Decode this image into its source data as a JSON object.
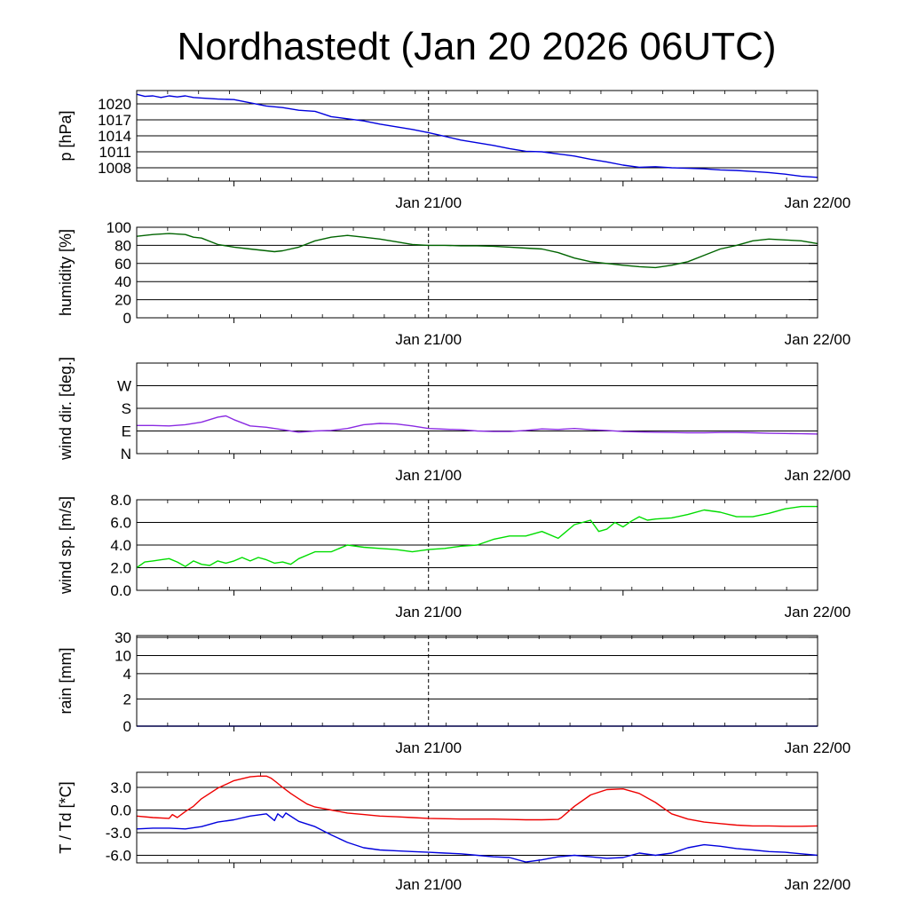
{
  "chart_data": {
    "type": "line",
    "title": "Nordhastedt (Jan 20 2026 06UTC)",
    "x_range_hours": [
      0,
      42
    ],
    "x_ticks": [
      {
        "h": 18,
        "label": "Jan 21/00"
      },
      {
        "h": 42,
        "label": "Jan 22/00"
      }
    ],
    "x_minor_ticks": [
      6,
      30
    ],
    "now_marker_h": 18,
    "panels": [
      {
        "id": "pressure",
        "ylabel": "p [hPa]",
        "ylim": [
          1005.5,
          1022.5
        ],
        "yticks": [
          1020,
          1017,
          1014,
          1011,
          1008
        ],
        "ytick_labels": [
          "1020",
          "1017",
          "1014",
          "1011",
          "1008"
        ],
        "series": [
          {
            "name": "pressure",
            "color": "#0000dd",
            "x": [
              0,
              0.5,
              1,
              1.5,
              2,
              2.5,
              3,
              3.5,
              4,
              5,
              6,
              7,
              8,
              9,
              10,
              11,
              12,
              13,
              14,
              15,
              16,
              17,
              18,
              19,
              20,
              21,
              22,
              23,
              24,
              25,
              26,
              27,
              28,
              29,
              30,
              31,
              32,
              33,
              34,
              35,
              36,
              37,
              38,
              39,
              40,
              41,
              42
            ],
            "y": [
              1021.8,
              1021.4,
              1021.5,
              1021.2,
              1021.5,
              1021.3,
              1021.5,
              1021.2,
              1021.1,
              1020.9,
              1020.8,
              1020.2,
              1019.6,
              1019.3,
              1018.8,
              1018.6,
              1017.6,
              1017.2,
              1016.8,
              1016.2,
              1015.7,
              1015.2,
              1014.6,
              1013.9,
              1013.2,
              1012.7,
              1012.2,
              1011.6,
              1011.1,
              1011.0,
              1010.6,
              1010.2,
              1009.6,
              1009.1,
              1008.5,
              1008.1,
              1008.2,
              1008.0,
              1007.9,
              1007.8,
              1007.6,
              1007.5,
              1007.3,
              1007.1,
              1006.8,
              1006.4,
              1006.2
            ]
          }
        ]
      },
      {
        "id": "humidity",
        "ylabel": "humidity [%]",
        "ylim": [
          0,
          100
        ],
        "yticks": [
          100,
          80,
          60,
          40,
          20,
          0
        ],
        "ytick_labels": [
          "100",
          "80",
          "60",
          "40",
          "20",
          "0"
        ],
        "series": [
          {
            "name": "humidity",
            "color": "#006400",
            "x": [
              0,
              1,
              2,
              3,
              3.5,
              4,
              5,
              6,
              7,
              8,
              8.5,
              9,
              10,
              11,
              12,
              13,
              14,
              15,
              16,
              17,
              18,
              19,
              20,
              21,
              22,
              23,
              24,
              25,
              26,
              27,
              28,
              29,
              30,
              31,
              32,
              33,
              34,
              35,
              36,
              37,
              38,
              39,
              40,
              41,
              42
            ],
            "y": [
              90,
              92,
              93,
              92,
              89,
              88,
              81,
              78,
              76,
              74,
              73,
              74,
              78,
              85,
              89,
              91,
              89,
              87,
              84,
              81,
              80,
              80,
              79.5,
              79.5,
              79,
              78,
              77,
              76,
              72,
              66,
              62,
              60,
              58,
              56.5,
              55.5,
              58,
              62,
              69,
              76,
              80,
              85,
              87,
              86,
              85,
              82
            ]
          }
        ]
      },
      {
        "id": "wind_direction",
        "ylabel": "wind dir. [deg.]",
        "ylim": [
          0,
          360
        ],
        "yticks": [
          270,
          180,
          90,
          0
        ],
        "ytick_labels": [
          "W",
          "S",
          "E",
          "N"
        ],
        "series": [
          {
            "name": "wind direction",
            "color": "#8a2be2",
            "x": [
              0,
              1,
              2,
              3,
              4,
              5,
              5.5,
              6,
              7,
              8,
              9,
              10,
              11,
              12,
              13,
              14,
              15,
              16,
              17,
              18,
              19,
              20,
              21,
              22,
              23,
              24,
              25,
              26,
              27,
              28,
              29,
              30,
              31,
              32,
              33,
              34,
              35,
              36,
              37,
              38,
              39,
              40,
              41,
              42
            ],
            "y": [
              112,
              112,
              110,
              115,
              125,
              145,
              150,
              135,
              110,
              105,
              95,
              85,
              90,
              92,
              100,
              115,
              120,
              118,
              110,
              100,
              97,
              95,
              90,
              88,
              88,
              92,
              98,
              96,
              100,
              95,
              92,
              88,
              86,
              85,
              84,
              83,
              83,
              84,
              84,
              83,
              81,
              80,
              79,
              78
            ]
          }
        ]
      },
      {
        "id": "wind_speed",
        "ylabel": "wind sp. [m/s]",
        "ylim": [
          0,
          8
        ],
        "yticks": [
          8,
          6,
          4,
          2,
          0
        ],
        "ytick_labels": [
          "8.0",
          "6.0",
          "4.0",
          "2.0",
          "0.0"
        ],
        "series": [
          {
            "name": "wind speed",
            "color": "#00dd00",
            "x": [
              0,
              0.5,
              1,
              1.5,
              2,
              2.5,
              3,
              3.5,
              4,
              4.5,
              5,
              5.5,
              6,
              6.5,
              7,
              7.5,
              8,
              8.5,
              9,
              9.5,
              10,
              11,
              12,
              13,
              14,
              15,
              16,
              17,
              18,
              19,
              20,
              21,
              22,
              23,
              24,
              25,
              26,
              27,
              28,
              28.5,
              29,
              29.5,
              30,
              30.5,
              31,
              31.5,
              32,
              33,
              34,
              35,
              36,
              37,
              38,
              39,
              40,
              41,
              42
            ],
            "y": [
              2.0,
              2.5,
              2.6,
              2.7,
              2.8,
              2.5,
              2.1,
              2.6,
              2.3,
              2.2,
              2.6,
              2.4,
              2.6,
              2.9,
              2.6,
              2.9,
              2.7,
              2.4,
              2.5,
              2.3,
              2.8,
              3.4,
              3.4,
              4.0,
              3.8,
              3.7,
              3.6,
              3.4,
              3.6,
              3.7,
              3.9,
              4.0,
              4.5,
              4.8,
              4.8,
              5.2,
              4.6,
              5.8,
              6.2,
              5.2,
              5.4,
              6.0,
              5.6,
              6.1,
              6.5,
              6.2,
              6.3,
              6.4,
              6.7,
              7.1,
              6.9,
              6.5,
              6.5,
              6.8,
              7.2,
              7.4,
              7.4
            ]
          }
        ]
      },
      {
        "id": "rain",
        "ylabel": "rain [mm]",
        "ylim": [
          0,
          30
        ],
        "yticks": [
          30,
          10,
          4,
          2,
          0
        ],
        "ytick_labels": [
          "30",
          "10",
          "4",
          "2",
          "0"
        ],
        "series": [
          {
            "name": "rain",
            "color": "#0000dd",
            "x": [
              0,
              42
            ],
            "y": [
              0,
              0
            ]
          }
        ]
      },
      {
        "id": "temperature",
        "ylabel": "T / Td [*C]",
        "ylim": [
          -7,
          5
        ],
        "yticks": [
          3,
          0,
          -3,
          -6
        ],
        "ytick_labels": [
          "3.0",
          "0.0",
          "-3.0",
          "-6.0"
        ],
        "series": [
          {
            "name": "T",
            "color": "#ee0000",
            "x": [
              0,
              1,
              2,
              2.2,
              2.5,
              3,
              3.5,
              4,
              5,
              6,
              7,
              7.5,
              8,
              8.3,
              8.6,
              9,
              9.5,
              10,
              10.5,
              11,
              12,
              13,
              14,
              15,
              16,
              17,
              18,
              19,
              20,
              21,
              22,
              23,
              24,
              25,
              26,
              26.2,
              27,
              28,
              29,
              30,
              31,
              32,
              33,
              34,
              35,
              36,
              37,
              38,
              39,
              40,
              41,
              42
            ],
            "y": [
              -0.8,
              -1.0,
              -1.1,
              -0.6,
              -1.0,
              -0.2,
              0.5,
              1.5,
              2.9,
              3.9,
              4.4,
              4.5,
              4.5,
              4.2,
              3.7,
              3.0,
              2.2,
              1.5,
              0.8,
              0.4,
              0.0,
              -0.4,
              -0.6,
              -0.8,
              -0.9,
              -1.0,
              -1.1,
              -1.15,
              -1.2,
              -1.2,
              -1.2,
              -1.25,
              -1.3,
              -1.3,
              -1.25,
              -1.0,
              0.5,
              2.0,
              2.7,
              2.8,
              2.2,
              1.0,
              -0.5,
              -1.2,
              -1.6,
              -1.8,
              -2.0,
              -2.1,
              -2.1,
              -2.15,
              -2.15,
              -2.1
            ]
          },
          {
            "name": "Td",
            "color": "#0000dd",
            "x": [
              0,
              1,
              2,
              3,
              4,
              5,
              6,
              7,
              8,
              8.5,
              8.7,
              9,
              9.2,
              10,
              11,
              12,
              13,
              14,
              15,
              16,
              17,
              18,
              19,
              20,
              21,
              22,
              23,
              24,
              25,
              26,
              27,
              28,
              29,
              30,
              31,
              32,
              33,
              34,
              35,
              36,
              37,
              38,
              39,
              40,
              41,
              42
            ],
            "y": [
              -2.5,
              -2.4,
              -2.4,
              -2.5,
              -2.2,
              -1.6,
              -1.3,
              -0.8,
              -0.5,
              -1.4,
              -0.5,
              -1.0,
              -0.4,
              -1.5,
              -2.2,
              -3.3,
              -4.3,
              -5.0,
              -5.3,
              -5.4,
              -5.5,
              -5.6,
              -5.7,
              -5.8,
              -6.0,
              -6.2,
              -6.3,
              -6.9,
              -6.6,
              -6.2,
              -6.0,
              -6.2,
              -6.4,
              -6.3,
              -5.7,
              -6.0,
              -5.7,
              -5.0,
              -4.6,
              -4.8,
              -5.1,
              -5.3,
              -5.5,
              -5.6,
              -5.8,
              -6.0
            ]
          }
        ]
      }
    ]
  }
}
